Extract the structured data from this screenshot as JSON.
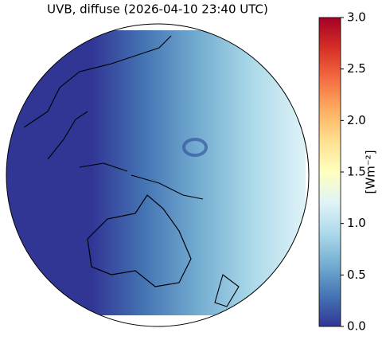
{
  "map": {
    "title": "UVB, diffuse (2026-04-10 23:40 UTC)",
    "colorbar": {
      "label": "[Wm⁻²]",
      "lim": [
        0,
        3
      ],
      "ticks": [
        {
          "value": 0,
          "label": "0.0"
        },
        {
          "value": 0.5,
          "label": "0.5"
        },
        {
          "value": 1,
          "label": "1.0"
        },
        {
          "value": 1.5,
          "label": "1.5"
        },
        {
          "value": 2,
          "label": "2.0"
        },
        {
          "value": 2.5,
          "label": "2.5"
        },
        {
          "value": 3,
          "label": "3.0"
        }
      ],
      "colors": [
        "#313695",
        "#4575b4",
        "#74add1",
        "#abd9e9",
        "#e0f3f8",
        "#ffffbf",
        "#fee090",
        "#fdae61",
        "#f46d43",
        "#d73027",
        "#a50026"
      ]
    }
  }
}
